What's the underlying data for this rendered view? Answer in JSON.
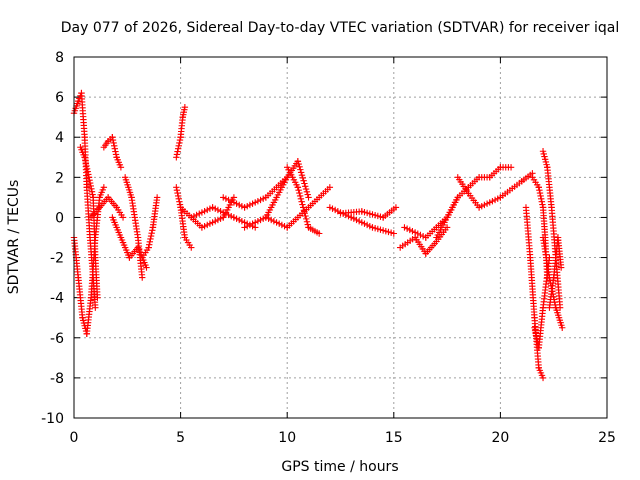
{
  "chart_data": {
    "type": "scatter",
    "title": "Day 077 of 2026, Sidereal Day-to-day VTEC variation (SDTVAR) for receiver iqal",
    "xlabel": "GPS time / hours",
    "ylabel": "SDTVAR / TECUs",
    "xlim": [
      0,
      25
    ],
    "ylim": [
      -10,
      8
    ],
    "xticks": [
      0,
      5,
      10,
      15,
      20,
      25
    ],
    "xtick_labels": [
      "0",
      "5",
      "10",
      "15",
      "20",
      "25"
    ],
    "yticks": [
      -10,
      -8,
      -6,
      -4,
      -2,
      0,
      2,
      4,
      6,
      8
    ],
    "ytick_labels": [
      "-10",
      "-8",
      "-6",
      "-4",
      "-2",
      "0",
      "2",
      "4",
      "6",
      "8"
    ],
    "grid": true,
    "marker": "plus",
    "color": "#ff0000",
    "series": [
      {
        "name": "SDTVAR",
        "segments": [
          {
            "x": [
              0.0,
              0.2,
              0.35,
              0.5,
              0.6,
              0.75,
              0.9,
              1.0
            ],
            "y": [
              5.2,
              5.8,
              6.2,
              4.0,
              1.5,
              -1.0,
              -3.0,
              -4.5
            ]
          },
          {
            "x": [
              0.0,
              0.2,
              0.4,
              0.6,
              0.8,
              1.0,
              1.2,
              1.4
            ],
            "y": [
              -1.0,
              -3.0,
              -5.0,
              -5.8,
              -4.0,
              -1.0,
              1.0,
              1.5
            ]
          },
          {
            "x": [
              0.3,
              0.5,
              0.7,
              0.9,
              1.0,
              1.1
            ],
            "y": [
              3.5,
              3.0,
              2.0,
              1.0,
              -2.0,
              -4.0
            ]
          },
          {
            "x": [
              0.8,
              1.2,
              1.6,
              2.0,
              2.3
            ],
            "y": [
              0.0,
              0.5,
              1.0,
              0.5,
              0.0
            ]
          },
          {
            "x": [
              1.4,
              1.6,
              1.8,
              2.0,
              2.2
            ],
            "y": [
              3.5,
              3.8,
              4.0,
              3.0,
              2.5
            ]
          },
          {
            "x": [
              1.8,
              2.2,
              2.6,
              3.0,
              3.4
            ],
            "y": [
              0.0,
              -1.0,
              -2.0,
              -1.5,
              -2.5
            ]
          },
          {
            "x": [
              2.4,
              2.7,
              3.0,
              3.2
            ],
            "y": [
              2.0,
              1.0,
              -1.0,
              -3.0
            ]
          },
          {
            "x": [
              3.2,
              3.5,
              3.7,
              3.9
            ],
            "y": [
              -2.0,
              -1.5,
              -0.5,
              1.0
            ]
          },
          {
            "x": [
              4.8,
              5.0,
              5.1,
              5.2
            ],
            "y": [
              3.0,
              4.0,
              5.0,
              5.5
            ]
          },
          {
            "x": [
              4.8,
              5.0,
              5.2,
              5.5
            ],
            "y": [
              1.5,
              0.5,
              -1.0,
              -1.5
            ]
          },
          {
            "x": [
              5.0,
              6.0,
              7.0,
              7.5
            ],
            "y": [
              0.5,
              -0.5,
              0.0,
              1.0
            ]
          },
          {
            "x": [
              5.5,
              6.5,
              7.5,
              8.5
            ],
            "y": [
              0.0,
              0.5,
              0.0,
              -0.5
            ]
          },
          {
            "x": [
              7.0,
              8.0,
              9.0,
              10.0
            ],
            "y": [
              1.0,
              0.5,
              1.0,
              2.0
            ]
          },
          {
            "x": [
              8.0,
              9.0,
              10.0,
              10.5,
              11.0
            ],
            "y": [
              -0.5,
              0.0,
              2.0,
              2.8,
              1.0
            ]
          },
          {
            "x": [
              9.0,
              10.0,
              11.0,
              12.0
            ],
            "y": [
              0.0,
              -0.5,
              0.5,
              1.5
            ]
          },
          {
            "x": [
              10.0,
              10.5,
              11.0,
              11.5
            ],
            "y": [
              2.5,
              1.5,
              -0.5,
              -0.8
            ]
          },
          {
            "x": [
              12.0,
              13.0,
              14.0,
              15.0
            ],
            "y": [
              0.5,
              0.0,
              -0.5,
              -0.8
            ]
          },
          {
            "x": [
              12.5,
              13.5,
              14.5,
              15.1
            ],
            "y": [
              0.2,
              0.3,
              0.0,
              0.5
            ]
          },
          {
            "x": [
              15.3,
              16.0,
              16.5,
              17.0,
              17.5
            ],
            "y": [
              -1.5,
              -1.0,
              -1.8,
              -1.2,
              -0.5
            ]
          },
          {
            "x": [
              15.5,
              16.5,
              17.0,
              17.5,
              18.0
            ],
            "y": [
              -0.5,
              -1.0,
              -0.5,
              0.0,
              1.0
            ]
          },
          {
            "x": [
              17.0,
              17.5,
              18.0,
              18.5,
              19.0,
              19.5,
              20.0,
              20.5
            ],
            "y": [
              -1.0,
              0.0,
              1.0,
              1.5,
              2.0,
              2.0,
              2.5,
              2.5
            ]
          },
          {
            "x": [
              18.0,
              18.5,
              19.0,
              20.0,
              21.0,
              21.5
            ],
            "y": [
              2.0,
              1.2,
              0.5,
              1.0,
              1.8,
              2.2
            ]
          },
          {
            "x": [
              21.5,
              21.8,
              22.0,
              22.1,
              22.2
            ],
            "y": [
              2.0,
              1.5,
              0.5,
              -1.0,
              -3.0
            ]
          },
          {
            "x": [
              21.2,
              21.4,
              21.6,
              21.8,
              22.0
            ],
            "y": [
              0.5,
              -2.0,
              -5.0,
              -7.5,
              -8.0
            ]
          },
          {
            "x": [
              21.6,
              21.8,
              22.0,
              22.3
            ],
            "y": [
              -5.5,
              -6.5,
              -4.5,
              -2.0
            ]
          },
          {
            "x": [
              22.0,
              22.2,
              22.4,
              22.6,
              22.8
            ],
            "y": [
              3.3,
              2.5,
              0.5,
              -2.0,
              -4.5
            ]
          },
          {
            "x": [
              22.0,
              22.3,
              22.6,
              22.9
            ],
            "y": [
              -1.0,
              -3.0,
              -4.5,
              -5.5
            ]
          },
          {
            "x": [
              22.3,
              22.5,
              22.7,
              22.85
            ],
            "y": [
              -4.5,
              -3.0,
              -1.0,
              -2.5
            ]
          }
        ]
      }
    ]
  }
}
